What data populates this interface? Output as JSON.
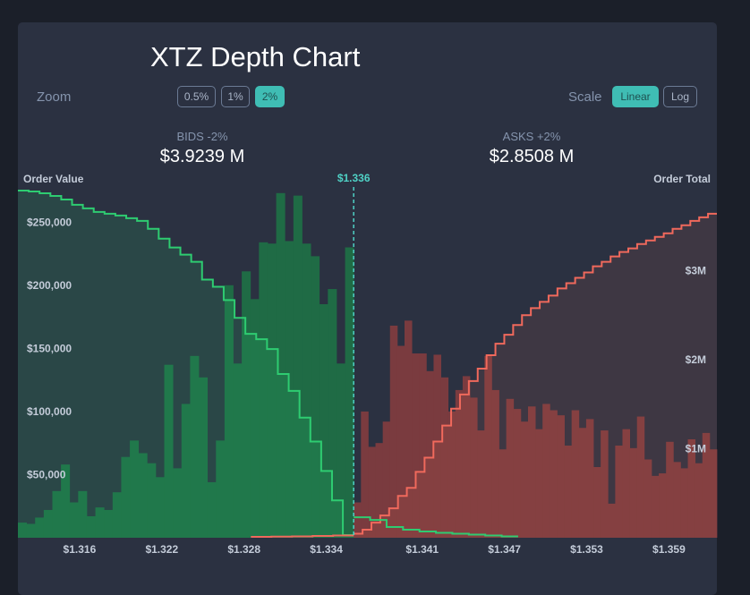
{
  "title": "XTZ Depth Chart",
  "zoom": {
    "label": "Zoom",
    "options": [
      "0.5%",
      "1%",
      "2%"
    ],
    "selected": "2%"
  },
  "scale": {
    "label": "Scale",
    "options": [
      "Linear",
      "Log"
    ],
    "selected": "Linear"
  },
  "bids": {
    "label": "BIDS -2%",
    "value": "$3.9239 M"
  },
  "asks": {
    "label": "ASKS +2%",
    "value": "$2.8508 M"
  },
  "colors": {
    "bid": "#2ecc71",
    "ask": "#f0695c",
    "mid": "#4fd1c5",
    "bidBar": "#1f6b45",
    "askBar": "#7a3b3f"
  },
  "chart_data": {
    "type": "area",
    "mid_price": 1.336,
    "mid_label": "$1.336",
    "left_axis_title": "Order Value",
    "right_axis_title": "Order Total",
    "x_range": [
      1.3115,
      1.3625
    ],
    "x_ticks": [
      {
        "value": 1.316,
        "label": "$1.316"
      },
      {
        "value": 1.322,
        "label": "$1.322"
      },
      {
        "value": 1.328,
        "label": "$1.328"
      },
      {
        "value": 1.334,
        "label": "$1.334"
      },
      {
        "value": 1.341,
        "label": "$1.341"
      },
      {
        "value": 1.347,
        "label": "$1.347"
      },
      {
        "value": 1.353,
        "label": "$1.353"
      },
      {
        "value": 1.359,
        "label": "$1.359"
      }
    ],
    "left_range": [
      0,
      275000
    ],
    "left_ticks": [
      {
        "value": 50000,
        "label": "$50,000"
      },
      {
        "value": 100000,
        "label": "$100,000"
      },
      {
        "value": 150000,
        "label": "$150,000"
      },
      {
        "value": 200000,
        "label": "$200,000"
      },
      {
        "value": 250000,
        "label": "$250,000"
      }
    ],
    "right_range": [
      0,
      3900000
    ],
    "right_ticks": [
      {
        "value": 1000000,
        "label": "$1M"
      },
      {
        "value": 2000000,
        "label": "$2M"
      },
      {
        "value": 3000000,
        "label": "$3M"
      }
    ],
    "bucket_width": 0.0008,
    "bid_bars": [
      12000,
      11000,
      16000,
      22000,
      37000,
      58000,
      28000,
      37000,
      17000,
      24000,
      22000,
      36000,
      64000,
      77000,
      67000,
      59000,
      48000,
      137000,
      55000,
      106000,
      144000,
      127000,
      44000,
      77000,
      200000,
      138000,
      211000,
      189000,
      234000,
      233000,
      273000,
      235000,
      271000,
      233000,
      223000,
      185000,
      197000,
      138000,
      230000
    ],
    "ask_bars": [
      28000,
      100000,
      72000,
      75000,
      92000,
      168000,
      152000,
      172000,
      146000,
      146000,
      132000,
      145000,
      127000,
      100000,
      117000,
      128000,
      111000,
      85000,
      144000,
      117000,
      70000,
      110000,
      102000,
      92000,
      104000,
      86000,
      106000,
      101000,
      97000,
      73000,
      101000,
      87000,
      94000,
      56000,
      85000,
      27000,
      73000,
      86000,
      71000,
      96000,
      62000,
      49000,
      51000,
      76000,
      60000,
      55000,
      78000,
      59000,
      83000,
      70000
    ],
    "bid_cumulative": [
      3900000,
      3890000,
      3870000,
      3840000,
      3800000,
      3740000,
      3700000,
      3660000,
      3640000,
      3620000,
      3590000,
      3560000,
      3470000,
      3360000,
      3260000,
      3180000,
      3100000,
      2900000,
      2820000,
      2670000,
      2470000,
      2290000,
      2230000,
      2120000,
      1840000,
      1650000,
      1350000,
      1080000,
      750000,
      420000,
      30000
    ],
    "ask_cumulative": [
      45000,
      90000,
      170000,
      250000,
      330000,
      470000,
      560000,
      740000,
      900000,
      1080000,
      1260000,
      1450000,
      1610000,
      1760000,
      1900000,
      2050000,
      2180000,
      2280000,
      2390000,
      2500000,
      2580000,
      2650000,
      2720000,
      2800000,
      2860000,
      2920000,
      2980000,
      3050000,
      3100000,
      3160000,
      3210000,
      3250000,
      3300000,
      3340000,
      3380000,
      3420000,
      3470000,
      3510000,
      3560000,
      3600000,
      3640000
    ],
    "bid_tail_cumulative": [
      230000,
      200000,
      120000,
      90000,
      70000,
      55000,
      45000,
      35000,
      25000,
      15000
    ],
    "ask_tail_cumulative": [
      10000,
      12000,
      15000,
      20000,
      25000
    ]
  }
}
